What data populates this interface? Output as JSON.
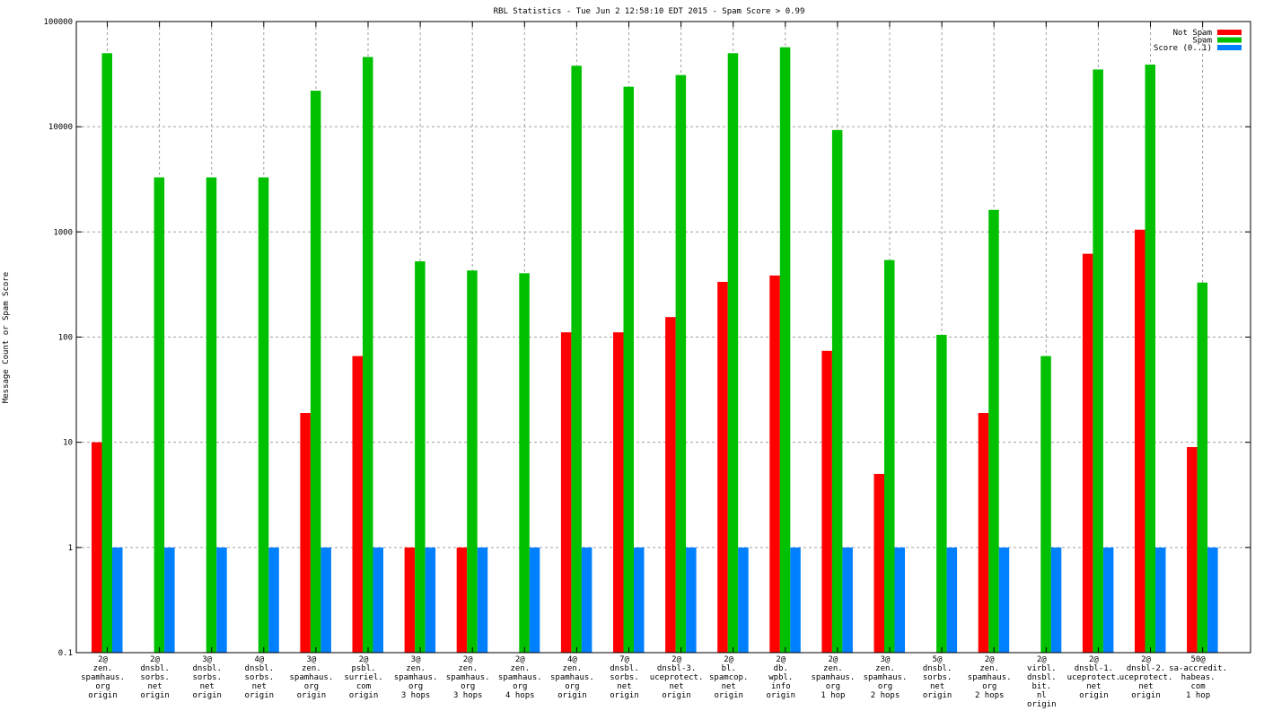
{
  "chart_data": {
    "type": "bar",
    "title": "RBL Statistics - Tue Jun  2 12:58:10 EDT 2015 - Spam Score > 0.99",
    "xlabel": "",
    "ylabel": "Message Count or Spam Score",
    "yscale": "log",
    "ylim": [
      0.1,
      100000
    ],
    "yticks": [
      "0.1",
      "1",
      "10",
      "100",
      "1000",
      "10000",
      "100000"
    ],
    "grid": true,
    "legend_position": "top-right",
    "categories": [
      [
        "2@",
        "zen.",
        "spamhaus.",
        "org",
        "origin"
      ],
      [
        "2@",
        "dnsbl.",
        "sorbs.",
        "net",
        "origin"
      ],
      [
        "3@",
        "dnsbl.",
        "sorbs.",
        "net",
        "origin"
      ],
      [
        "4@",
        "dnsbl.",
        "sorbs.",
        "net",
        "origin"
      ],
      [
        "3@",
        "zen.",
        "spamhaus.",
        "org",
        "origin"
      ],
      [
        "2@",
        "psbl.",
        "surriel.",
        "com",
        "origin"
      ],
      [
        "3@",
        "zen.",
        "spamhaus.",
        "org",
        "3 hops"
      ],
      [
        "2@",
        "zen.",
        "spamhaus.",
        "org",
        "3 hops"
      ],
      [
        "2@",
        "zen.",
        "spamhaus.",
        "org",
        "4 hops"
      ],
      [
        "4@",
        "zen.",
        "spamhaus.",
        "org",
        "origin"
      ],
      [
        "7@",
        "dnsbl.",
        "sorbs.",
        "net",
        "origin"
      ],
      [
        "2@",
        "dnsbl-3.",
        "uceprotect.",
        "net",
        "origin"
      ],
      [
        "2@",
        "bl.",
        "spamcop.",
        "net",
        "origin"
      ],
      [
        "2@",
        "db.",
        "wpbl.",
        "info",
        "origin"
      ],
      [
        "2@",
        "zen.",
        "spamhaus.",
        "org",
        "1 hop"
      ],
      [
        "3@",
        "zen.",
        "spamhaus.",
        "org",
        "2 hops"
      ],
      [
        "5@",
        "dnsbl.",
        "sorbs.",
        "net",
        "origin"
      ],
      [
        "2@",
        "zen.",
        "spamhaus.",
        "org",
        "2 hops"
      ],
      [
        "2@",
        "virbl.",
        "dnsbl.",
        "bit.",
        "nl",
        "origin"
      ],
      [
        "2@",
        "dnsbl-1.",
        "uceprotect.",
        "net",
        "origin"
      ],
      [
        "2@",
        "dnsbl-2.",
        "uceprotect.",
        "net",
        "origin"
      ],
      [
        "50@",
        "sa-accredit.",
        "habeas.",
        "com",
        "1 hop"
      ]
    ],
    "series": [
      {
        "name": "Not Spam",
        "color": "#ff0000",
        "values": [
          10,
          null,
          null,
          null,
          19,
          66,
          1,
          1,
          null,
          111,
          111,
          155,
          335,
          385,
          74,
          5,
          null,
          19,
          null,
          620,
          1050,
          9
        ]
      },
      {
        "name": "Spam",
        "color": "#00c000",
        "values": [
          50000,
          3300,
          3300,
          3300,
          22000,
          46000,
          525,
          430,
          405,
          38000,
          24000,
          31000,
          50000,
          57000,
          9300,
          540,
          105,
          1620,
          66,
          35000,
          39000,
          330
        ]
      },
      {
        "name": "Score (0..1)",
        "color": "#0080ff",
        "values": [
          1,
          1,
          1,
          1,
          1,
          1,
          1,
          1,
          1,
          1,
          1,
          1,
          1,
          1,
          1,
          1,
          1,
          1,
          1,
          1,
          1,
          1
        ]
      }
    ]
  }
}
